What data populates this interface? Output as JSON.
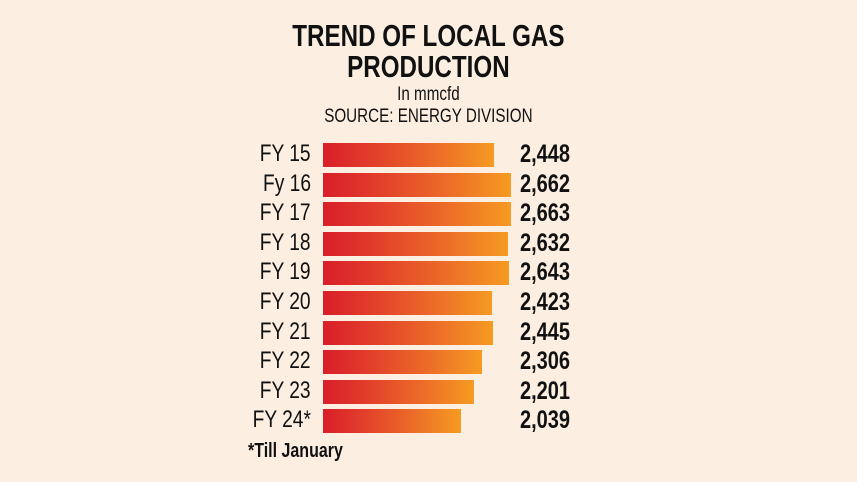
{
  "chart_data": {
    "type": "bar",
    "orientation": "horizontal",
    "title": "TREND OF LOCAL GAS PRODUCTION",
    "title_lines": [
      "TREND OF LOCAL GAS",
      "PRODUCTION"
    ],
    "unit": "In mmcfd",
    "source": "SOURCE: ENERGY DIVISION",
    "categories": [
      "FY 15",
      "Fy 16",
      "FY 17",
      "FY 18",
      "FY 19",
      "FY 20",
      "FY 21",
      "FY 22",
      "FY 23",
      "FY 24*"
    ],
    "values": [
      2448,
      2662,
      2663,
      2632,
      2643,
      2423,
      2445,
      2306,
      2201,
      2039
    ],
    "value_labels": [
      "2,448",
      "2,662",
      "2,663",
      "2,632",
      "2,643",
      "2,423",
      "2,445",
      "2,306",
      "2,201",
      "2,039"
    ],
    "footnote": "*Till January",
    "colors": {
      "bar_start": "#d91e2a",
      "bar_end": "#f59b22",
      "background": "#fcefe2"
    }
  }
}
